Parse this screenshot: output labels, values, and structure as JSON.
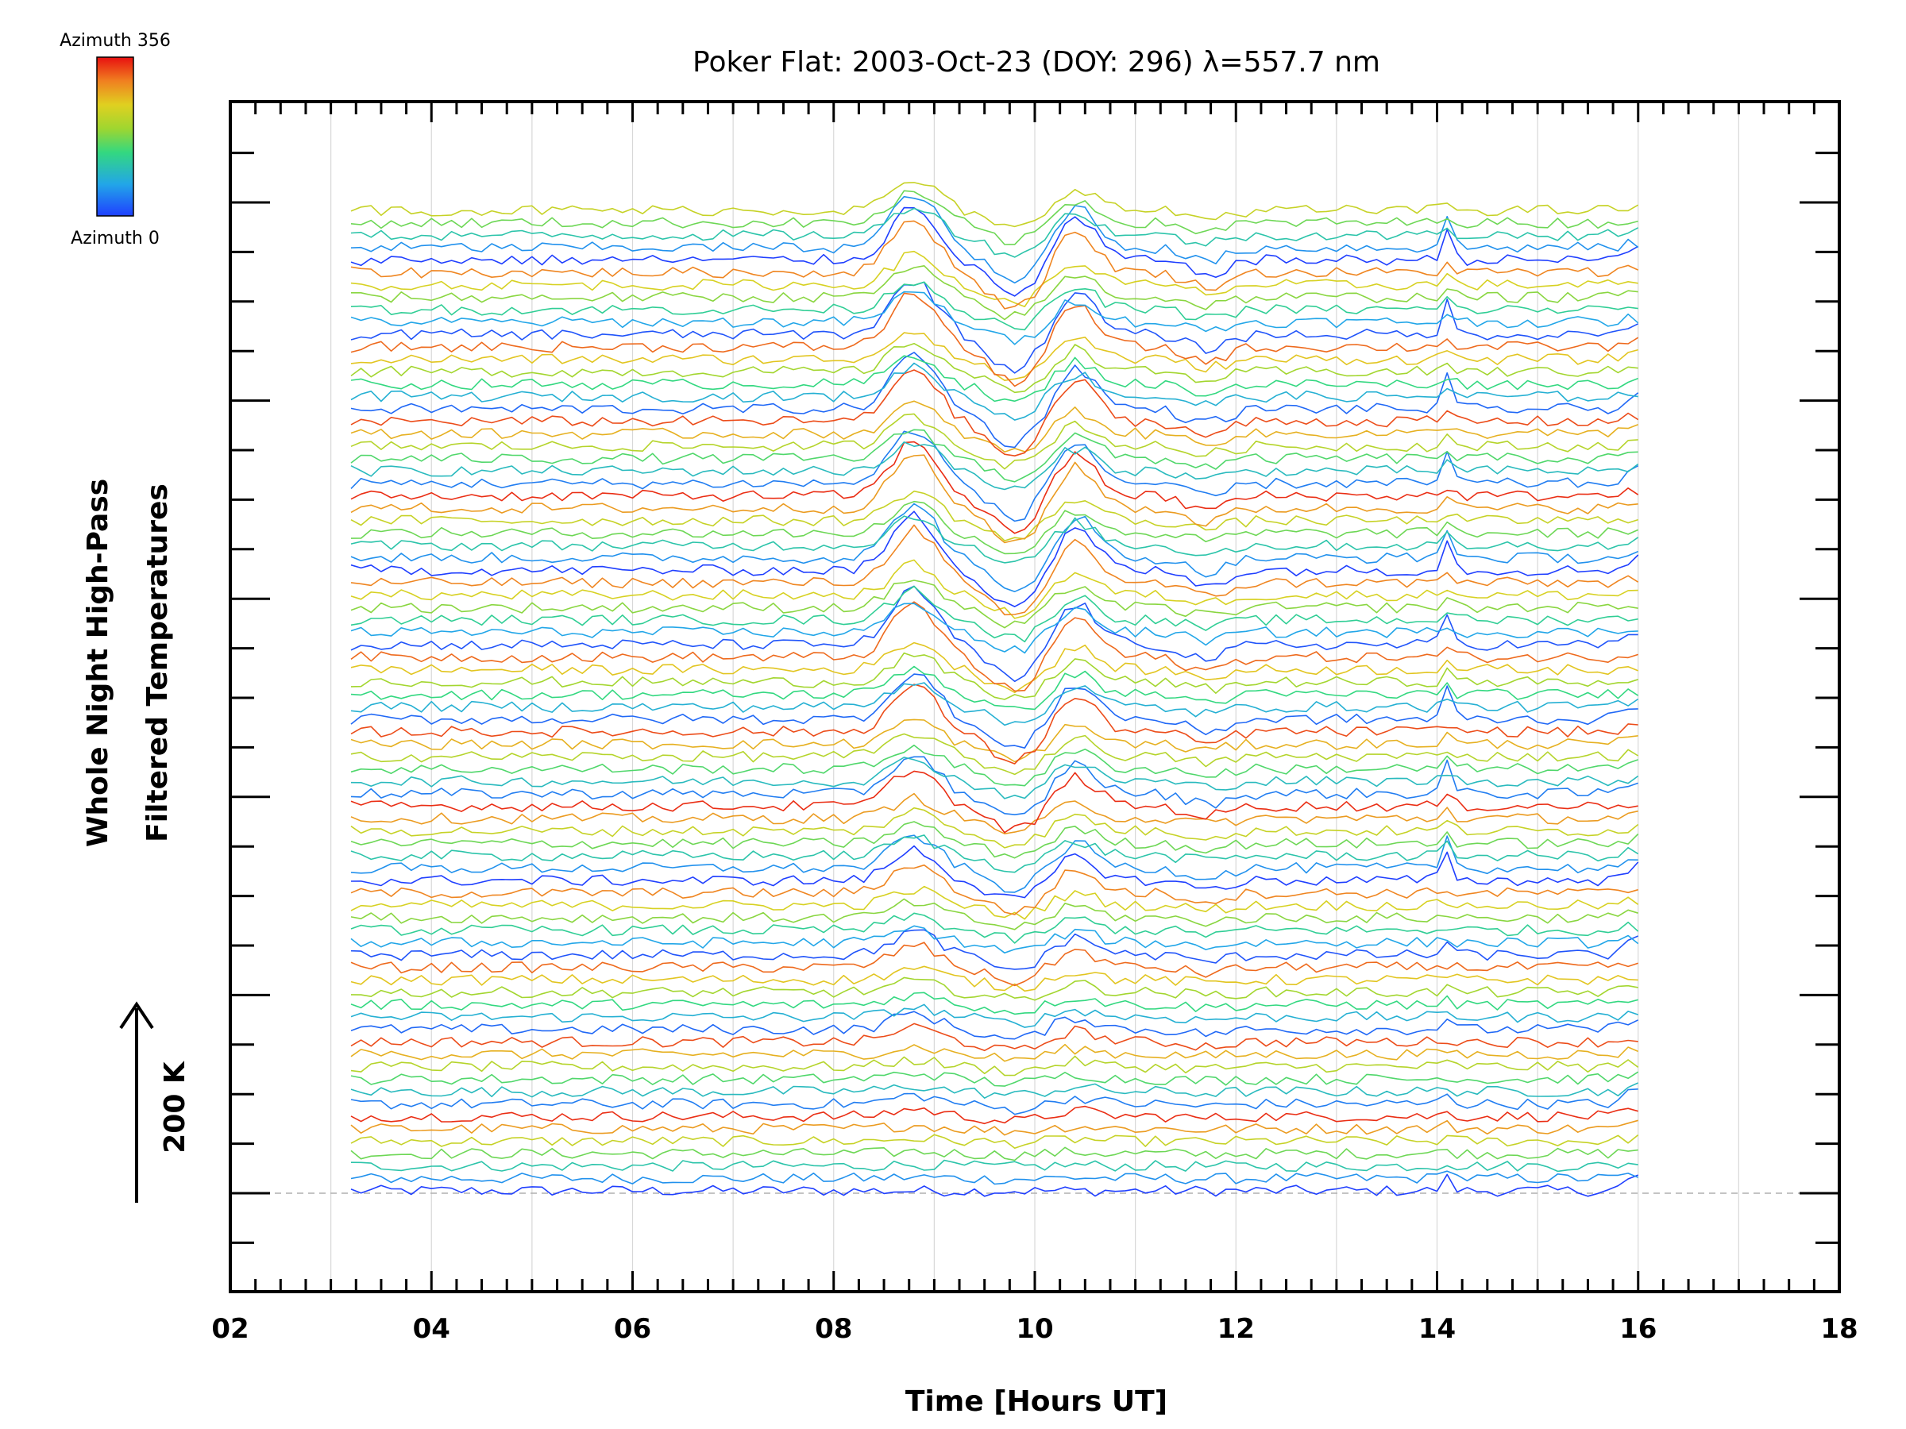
{
  "chart_data": {
    "type": "line",
    "title": "Poker Flat: 2003-Oct-23 (DOY: 296) λ=557.7 nm",
    "xlabel": "Time [Hours UT]",
    "ylabel_line1": "Whole Night High-Pass",
    "ylabel_line2": "Filtered Temperatures",
    "scale_label": "200 K",
    "xlim": [
      2,
      18
    ],
    "x_ticks": [
      "02",
      "04",
      "06",
      "08",
      "10",
      "12",
      "14",
      "16",
      "18"
    ],
    "x_grid": true,
    "x_range_data": [
      3.2,
      16.0
    ],
    "colorbar": {
      "top_label": "Azimuth 356",
      "bottom_label": "Azimuth 0",
      "colormap": "rainbow",
      "placement": "top-left"
    },
    "traces": {
      "count": 80,
      "offset_per_trace_K": 50,
      "azimuth_range": [
        0,
        356
      ],
      "note_events": [
        8.8,
        10.4,
        14.1
      ]
    }
  }
}
